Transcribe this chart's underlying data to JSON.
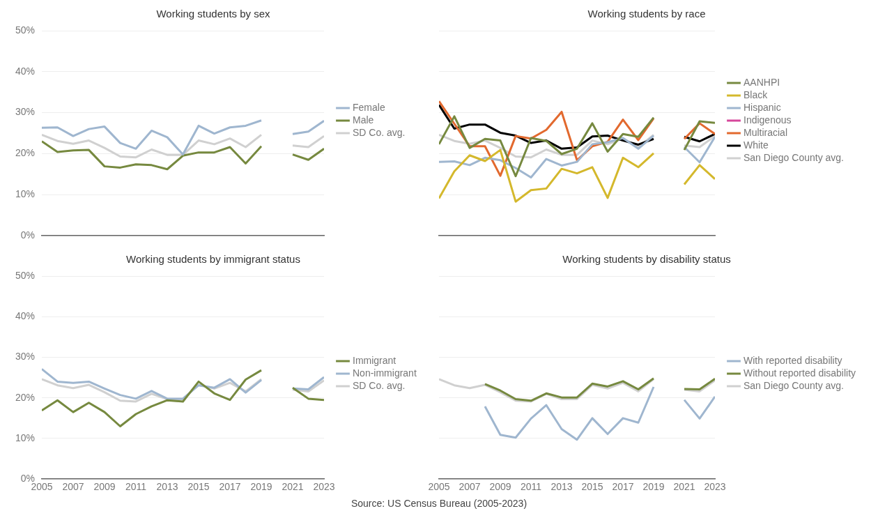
{
  "chart_data": [
    {
      "type": "line",
      "title": "Working students by sex",
      "x": [
        2005,
        2006,
        2007,
        2008,
        2009,
        2010,
        2011,
        2012,
        2013,
        2014,
        2015,
        2016,
        2017,
        2018,
        2019,
        2020,
        2021,
        2022,
        2023
      ],
      "xlim": [
        2005,
        2023
      ],
      "xticks": [
        2005,
        2007,
        2009,
        2011,
        2013,
        2015,
        2017,
        2019,
        2021,
        2023
      ],
      "ylim": [
        0,
        50
      ],
      "yticks": [
        {
          "value": 0,
          "label": "0%"
        },
        {
          "value": 10,
          "label": "10%"
        },
        {
          "value": 20,
          "label": "20%"
        },
        {
          "value": 30,
          "label": "30%"
        },
        {
          "value": 40,
          "label": "40%"
        },
        {
          "value": 50,
          "label": "50%"
        }
      ],
      "grid": "y",
      "legend": "right",
      "tick_labels": "y",
      "series": [
        {
          "name": "Female",
          "color": "#9fb6cf",
          "values": [
            26.3,
            26.4,
            24.3,
            26,
            26.6,
            22.6,
            21.2,
            25.6,
            24,
            19.8,
            26.8,
            24.9,
            26.4,
            26.8,
            28.1,
            null,
            24.8,
            25.4,
            28
          ]
        },
        {
          "name": "Male",
          "color": "#76893f",
          "values": [
            23,
            20.4,
            20.8,
            20.9,
            16.9,
            16.6,
            17.4,
            17.2,
            16.2,
            19.5,
            20.3,
            20.3,
            21.6,
            17.6,
            21.8,
            null,
            19.8,
            18.5,
            21.2
          ]
        },
        {
          "name": "SD Co. avg.",
          "color": "#d0d0d0",
          "values": [
            24.6,
            23.1,
            22.4,
            23.2,
            21.4,
            19.3,
            19.1,
            21,
            19.7,
            19.7,
            23.2,
            22.3,
            23.7,
            21.6,
            24.6,
            null,
            22,
            21.6,
            24.3
          ]
        }
      ]
    },
    {
      "type": "line",
      "title": "Working students by race",
      "x": [
        2005,
        2006,
        2007,
        2008,
        2009,
        2010,
        2011,
        2012,
        2013,
        2014,
        2015,
        2016,
        2017,
        2018,
        2019,
        2020,
        2021,
        2022,
        2023
      ],
      "xlim": [
        2005,
        2023
      ],
      "xticks": [
        2005,
        2007,
        2009,
        2011,
        2013,
        2015,
        2017,
        2019,
        2021,
        2023
      ],
      "ylim": [
        0,
        50
      ],
      "yticks": [
        0,
        10,
        20,
        30,
        40,
        50
      ],
      "grid": "y",
      "legend": "right",
      "tick_labels": false,
      "series": [
        {
          "name": "AANHPI",
          "color": "#76893f",
          "values": [
            22.3,
            29.1,
            21.4,
            23.6,
            23.2,
            14.5,
            23.8,
            23.1,
            19.9,
            21.2,
            27.4,
            20.5,
            24.8,
            24.1,
            28.8,
            null,
            20.9,
            27.9,
            27.5
          ]
        },
        {
          "name": "Black",
          "color": "#d4b82c",
          "values": [
            9.1,
            15.7,
            19.6,
            18.2,
            20.9,
            8.3,
            11.1,
            11.5,
            16.3,
            15.2,
            16.7,
            9.2,
            19,
            16.7,
            20.1,
            null,
            12.5,
            17.2,
            13.8
          ]
        },
        {
          "name": "Hispanic",
          "color": "#9fb6cf",
          "values": [
            18,
            18.1,
            17.2,
            19,
            18.4,
            16.5,
            14.2,
            18.7,
            17.1,
            18,
            22.3,
            22.8,
            23.8,
            21.2,
            24.4,
            null,
            21.6,
            17.9,
            24.1
          ]
        },
        {
          "name": "Indigenous",
          "color": "#d6479b",
          "values": [
            null,
            null,
            null,
            null,
            null,
            null,
            null,
            null,
            null,
            null,
            null,
            null,
            null,
            null,
            null,
            null,
            null,
            null,
            null
          ]
        },
        {
          "name": "Multiracial",
          "color": "#e2692e",
          "values": [
            32.8,
            27.3,
            21.8,
            21.8,
            14.6,
            24.3,
            23.7,
            25.8,
            30.2,
            18.4,
            21.8,
            22.9,
            28.3,
            23.3,
            28.6,
            null,
            23.6,
            27.4,
            24.8
          ]
        },
        {
          "name": "White",
          "color": "#000000",
          "values": [
            31.9,
            26.1,
            27.1,
            27.1,
            25.1,
            24.4,
            22.6,
            23.2,
            21.2,
            21.5,
            24.2,
            24.4,
            23.2,
            22.2,
            23.6,
            null,
            24.1,
            23,
            24.8
          ]
        },
        {
          "name": "San Diego County avg.",
          "color": "#d0d0d0",
          "values": [
            24.6,
            23.1,
            22.4,
            23.2,
            21.4,
            19.3,
            19.1,
            21,
            19.7,
            19.7,
            23.2,
            22.3,
            23.7,
            21.6,
            24.6,
            null,
            22,
            21.6,
            24.3
          ]
        }
      ]
    },
    {
      "type": "line",
      "title": "Working students by immigrant status",
      "x": [
        2005,
        2006,
        2007,
        2008,
        2009,
        2010,
        2011,
        2012,
        2013,
        2014,
        2015,
        2016,
        2017,
        2018,
        2019,
        2020,
        2021,
        2022,
        2023
      ],
      "xlim": [
        2005,
        2023
      ],
      "xticks": [
        2005,
        2007,
        2009,
        2011,
        2013,
        2015,
        2017,
        2019,
        2021,
        2023
      ],
      "ylim": [
        0,
        50
      ],
      "yticks": [
        {
          "value": 0,
          "label": "0%"
        },
        {
          "value": 10,
          "label": "10%"
        },
        {
          "value": 20,
          "label": "20%"
        },
        {
          "value": 30,
          "label": "30%"
        },
        {
          "value": 40,
          "label": "40%"
        },
        {
          "value": 50,
          "label": "50%"
        }
      ],
      "grid": "y",
      "legend": "right",
      "annotations": [
        "Source: US Census Bureau (2005-2023)"
      ],
      "series": [
        {
          "name": "Immigrant",
          "color": "#76893f",
          "values": [
            16.9,
            19.4,
            16.5,
            18.8,
            16.5,
            13,
            16,
            17.9,
            19.4,
            19.1,
            24,
            21.1,
            19.5,
            24.5,
            26.8,
            null,
            22.5,
            19.8,
            19.5
          ]
        },
        {
          "name": "Non-immigrant",
          "color": "#9fb6cf",
          "values": [
            27.1,
            24,
            23.7,
            24,
            22.3,
            20.7,
            19.8,
            21.7,
            19.8,
            19.8,
            23.1,
            22.5,
            24.6,
            21.3,
            24.4,
            null,
            22.3,
            22.1,
            25.1
          ]
        },
        {
          "name": "SD Co. avg.",
          "color": "#d0d0d0",
          "values": [
            24.6,
            23.1,
            22.4,
            23.2,
            21.4,
            19.3,
            19.1,
            21,
            19.7,
            19.7,
            23.2,
            22.3,
            23.7,
            21.6,
            24.6,
            null,
            22,
            21.6,
            24.3
          ]
        }
      ]
    },
    {
      "type": "line",
      "title": "Working students by disability status",
      "x": [
        2005,
        2006,
        2007,
        2008,
        2009,
        2010,
        2011,
        2012,
        2013,
        2014,
        2015,
        2016,
        2017,
        2018,
        2019,
        2020,
        2021,
        2022,
        2023
      ],
      "xlim": [
        2005,
        2023
      ],
      "xticks": [
        2005,
        2007,
        2009,
        2011,
        2013,
        2015,
        2017,
        2019,
        2021,
        2023
      ],
      "ylim": [
        0,
        50
      ],
      "yticks": [
        0,
        10,
        20,
        30,
        40,
        50
      ],
      "grid": "y",
      "legend": "right",
      "tick_labels": "x",
      "series": [
        {
          "name": "With reported disability",
          "color": "#9fb6cf",
          "values": [
            null,
            null,
            null,
            17.9,
            10.9,
            10.2,
            14.9,
            18.2,
            12.3,
            9.7,
            15,
            11.1,
            15,
            13.9,
            22.7,
            null,
            19.5,
            14.9,
            20.3
          ]
        },
        {
          "name": "Without reported disability",
          "color": "#76893f",
          "values": [
            null,
            null,
            null,
            23.4,
            21.8,
            19.7,
            19.3,
            21.1,
            20.1,
            20.1,
            23.5,
            22.8,
            24.1,
            22.1,
            24.8,
            null,
            22.2,
            22.1,
            24.7
          ]
        },
        {
          "name": "San Diego County avg.",
          "color": "#d0d0d0",
          "values": [
            24.6,
            23.1,
            22.4,
            23.2,
            21.4,
            19.3,
            19.1,
            21,
            19.7,
            19.7,
            23.2,
            22.3,
            23.7,
            21.6,
            24.6,
            null,
            22,
            21.6,
            24.3
          ]
        }
      ]
    }
  ]
}
